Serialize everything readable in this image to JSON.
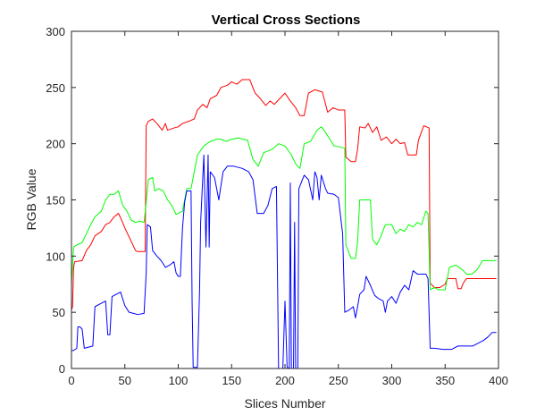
{
  "chart_data": {
    "type": "line",
    "title": "Vertical Cross Sections",
    "xlabel": "Slices Number",
    "ylabel": "RGB Value",
    "xlim": [
      0,
      400
    ],
    "ylim": [
      0,
      300
    ],
    "xticks": [
      0,
      50,
      100,
      150,
      200,
      250,
      300,
      350,
      400
    ],
    "yticks": [
      0,
      50,
      100,
      150,
      200,
      250,
      300
    ],
    "grid": false,
    "legend": "none",
    "series": [
      {
        "color": "#ff0000",
        "points": [
          [
            0,
            52
          ],
          [
            1,
            55
          ],
          [
            2,
            90
          ],
          [
            3,
            95
          ],
          [
            10,
            96
          ],
          [
            14,
            105
          ],
          [
            18,
            110
          ],
          [
            22,
            118
          ],
          [
            28,
            122
          ],
          [
            32,
            128
          ],
          [
            36,
            130
          ],
          [
            40,
            135
          ],
          [
            44,
            138
          ],
          [
            47,
            132
          ],
          [
            50,
            125
          ],
          [
            55,
            115
          ],
          [
            60,
            105
          ],
          [
            62,
            104
          ],
          [
            68,
            104
          ],
          [
            69,
            104
          ],
          [
            70,
            216
          ],
          [
            72,
            220
          ],
          [
            76,
            222
          ],
          [
            80,
            218
          ],
          [
            85,
            212
          ],
          [
            88,
            218
          ],
          [
            90,
            212
          ],
          [
            96,
            214
          ],
          [
            100,
            215
          ],
          [
            104,
            218
          ],
          [
            110,
            220
          ],
          [
            115,
            222
          ],
          [
            118,
            230
          ],
          [
            123,
            235
          ],
          [
            127,
            232
          ],
          [
            130,
            240
          ],
          [
            136,
            243
          ],
          [
            140,
            250
          ],
          [
            146,
            252
          ],
          [
            150,
            255
          ],
          [
            155,
            253
          ],
          [
            160,
            257
          ],
          [
            167,
            257
          ],
          [
            172,
            245
          ],
          [
            177,
            240
          ],
          [
            182,
            234
          ],
          [
            186,
            238
          ],
          [
            190,
            235
          ],
          [
            195,
            240
          ],
          [
            200,
            245
          ],
          [
            205,
            238
          ],
          [
            210,
            232
          ],
          [
            214,
            225
          ],
          [
            218,
            225
          ],
          [
            222,
            245
          ],
          [
            228,
            248
          ],
          [
            235,
            246
          ],
          [
            240,
            228
          ],
          [
            245,
            232
          ],
          [
            250,
            230
          ],
          [
            254,
            230
          ],
          [
            256,
            230
          ],
          [
            257,
            188
          ],
          [
            262,
            184
          ],
          [
            266,
            184
          ],
          [
            268,
            195
          ],
          [
            270,
            215
          ],
          [
            275,
            214
          ],
          [
            278,
            218
          ],
          [
            282,
            210
          ],
          [
            286,
            215
          ],
          [
            290,
            203
          ],
          [
            295,
            206
          ],
          [
            300,
            200
          ],
          [
            304,
            204
          ],
          [
            308,
            200
          ],
          [
            312,
            201
          ],
          [
            315,
            190
          ],
          [
            320,
            190
          ],
          [
            323,
            190
          ],
          [
            325,
            203
          ],
          [
            330,
            216
          ],
          [
            335,
            214
          ],
          [
            336,
            76
          ],
          [
            340,
            72
          ],
          [
            345,
            72
          ],
          [
            350,
            75
          ],
          [
            352,
            80
          ],
          [
            355,
            80
          ],
          [
            360,
            80
          ],
          [
            362,
            71
          ],
          [
            365,
            71
          ],
          [
            367,
            76
          ],
          [
            370,
            80
          ],
          [
            380,
            80
          ],
          [
            390,
            80
          ],
          [
            398,
            80
          ]
        ]
      },
      {
        "color": "#00ff00",
        "points": [
          [
            0,
            75
          ],
          [
            2,
            108
          ],
          [
            5,
            110
          ],
          [
            10,
            112
          ],
          [
            14,
            120
          ],
          [
            18,
            128
          ],
          [
            22,
            135
          ],
          [
            28,
            140
          ],
          [
            32,
            150
          ],
          [
            36,
            155
          ],
          [
            40,
            155
          ],
          [
            44,
            158
          ],
          [
            48,
            145
          ],
          [
            52,
            140
          ],
          [
            56,
            132
          ],
          [
            60,
            130
          ],
          [
            64,
            131
          ],
          [
            68,
            130
          ],
          [
            70,
            148
          ],
          [
            72,
            168
          ],
          [
            76,
            170
          ],
          [
            78,
            158
          ],
          [
            82,
            160
          ],
          [
            86,
            158
          ],
          [
            90,
            150
          ],
          [
            94,
            145
          ],
          [
            98,
            137
          ],
          [
            104,
            140
          ],
          [
            108,
            160
          ],
          [
            112,
            160
          ],
          [
            118,
            190
          ],
          [
            124,
            198
          ],
          [
            130,
            202
          ],
          [
            136,
            204
          ],
          [
            140,
            204
          ],
          [
            145,
            202
          ],
          [
            150,
            204
          ],
          [
            156,
            205
          ],
          [
            165,
            203
          ],
          [
            170,
            186
          ],
          [
            175,
            180
          ],
          [
            180,
            192
          ],
          [
            188,
            195
          ],
          [
            194,
            200
          ],
          [
            200,
            198
          ],
          [
            206,
            190
          ],
          [
            210,
            182
          ],
          [
            214,
            178
          ],
          [
            218,
            200
          ],
          [
            224,
            202
          ],
          [
            230,
            212
          ],
          [
            234,
            215
          ],
          [
            238,
            210
          ],
          [
            242,
            204
          ],
          [
            246,
            198
          ],
          [
            252,
            197
          ],
          [
            256,
            196
          ],
          [
            257,
            110
          ],
          [
            262,
            98
          ],
          [
            266,
            98
          ],
          [
            268,
            112
          ],
          [
            270,
            150
          ],
          [
            276,
            150
          ],
          [
            280,
            150
          ],
          [
            282,
            115
          ],
          [
            286,
            110
          ],
          [
            290,
            118
          ],
          [
            294,
            128
          ],
          [
            300,
            128
          ],
          [
            304,
            120
          ],
          [
            308,
            124
          ],
          [
            312,
            122
          ],
          [
            316,
            128
          ],
          [
            320,
            126
          ],
          [
            324,
            130
          ],
          [
            328,
            128
          ],
          [
            332,
            140
          ],
          [
            334,
            138
          ],
          [
            336,
            70
          ],
          [
            340,
            72
          ],
          [
            344,
            70
          ],
          [
            350,
            70
          ],
          [
            354,
            90
          ],
          [
            360,
            92
          ],
          [
            366,
            88
          ],
          [
            370,
            84
          ],
          [
            375,
            84
          ],
          [
            380,
            88
          ],
          [
            385,
            96
          ],
          [
            390,
            96
          ],
          [
            398,
            96
          ]
        ]
      },
      {
        "color": "#0000ff",
        "points": [
          [
            0,
            16
          ],
          [
            2,
            16
          ],
          [
            5,
            18
          ],
          [
            6,
            37
          ],
          [
            8,
            37
          ],
          [
            10,
            35
          ],
          [
            12,
            18
          ],
          [
            20,
            20
          ],
          [
            22,
            55
          ],
          [
            28,
            58
          ],
          [
            32,
            60
          ],
          [
            34,
            30
          ],
          [
            36,
            30
          ],
          [
            38,
            64
          ],
          [
            42,
            66
          ],
          [
            46,
            68
          ],
          [
            50,
            56
          ],
          [
            54,
            50
          ],
          [
            58,
            49
          ],
          [
            62,
            48
          ],
          [
            68,
            49
          ],
          [
            70,
            85
          ],
          [
            71,
            128
          ],
          [
            74,
            126
          ],
          [
            76,
            105
          ],
          [
            80,
            100
          ],
          [
            84,
            96
          ],
          [
            88,
            90
          ],
          [
            92,
            92
          ],
          [
            96,
            95
          ],
          [
            98,
            85
          ],
          [
            100,
            82
          ],
          [
            102,
            82
          ],
          [
            104,
            125
          ],
          [
            106,
            148
          ],
          [
            108,
            158
          ],
          [
            112,
            158
          ],
          [
            113,
            60
          ],
          [
            114,
            1
          ],
          [
            118,
            1
          ],
          [
            120,
            70
          ],
          [
            121,
            130
          ],
          [
            122,
            150
          ],
          [
            124,
            190
          ],
          [
            126,
            108
          ],
          [
            128,
            190
          ],
          [
            129,
            108
          ],
          [
            130,
            175
          ],
          [
            134,
            170
          ],
          [
            138,
            150
          ],
          [
            142,
            175
          ],
          [
            146,
            180
          ],
          [
            152,
            180
          ],
          [
            160,
            178
          ],
          [
            166,
            175
          ],
          [
            170,
            168
          ],
          [
            174,
            138
          ],
          [
            180,
            138
          ],
          [
            184,
            145
          ],
          [
            188,
            160
          ],
          [
            192,
            162
          ],
          [
            194,
            0
          ],
          [
            198,
            0
          ],
          [
            200,
            60
          ],
          [
            202,
            1
          ],
          [
            204,
            0
          ],
          [
            205,
            165
          ],
          [
            206,
            0
          ],
          [
            208,
            0
          ],
          [
            209,
            130
          ],
          [
            210,
            0
          ],
          [
            212,
            0
          ],
          [
            213,
            160
          ],
          [
            218,
            172
          ],
          [
            222,
            168
          ],
          [
            226,
            150
          ],
          [
            228,
            175
          ],
          [
            230,
            170
          ],
          [
            232,
            150
          ],
          [
            234,
            172
          ],
          [
            238,
            160
          ],
          [
            240,
            156
          ],
          [
            246,
            155
          ],
          [
            250,
            152
          ],
          [
            254,
            120
          ],
          [
            256,
            50
          ],
          [
            260,
            52
          ],
          [
            264,
            55
          ],
          [
            266,
            45
          ],
          [
            268,
            55
          ],
          [
            270,
            66
          ],
          [
            274,
            70
          ],
          [
            276,
            82
          ],
          [
            280,
            74
          ],
          [
            284,
            65
          ],
          [
            288,
            62
          ],
          [
            292,
            60
          ],
          [
            294,
            50
          ],
          [
            296,
            60
          ],
          [
            300,
            64
          ],
          [
            304,
            58
          ],
          [
            308,
            68
          ],
          [
            312,
            74
          ],
          [
            316,
            70
          ],
          [
            320,
            87
          ],
          [
            324,
            84
          ],
          [
            328,
            84
          ],
          [
            332,
            84
          ],
          [
            334,
            80
          ],
          [
            336,
            18
          ],
          [
            340,
            18
          ],
          [
            348,
            17
          ],
          [
            356,
            17
          ],
          [
            362,
            20
          ],
          [
            368,
            20
          ],
          [
            376,
            20
          ],
          [
            380,
            22
          ],
          [
            386,
            25
          ],
          [
            390,
            28
          ],
          [
            394,
            32
          ],
          [
            398,
            32
          ]
        ]
      }
    ]
  }
}
